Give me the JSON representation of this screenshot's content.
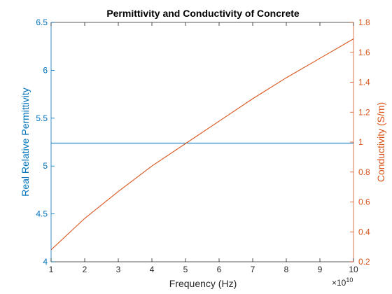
{
  "chart_data": {
    "type": "line",
    "title": "Permittivity and Conductivity of Concrete",
    "xlabel": "Frequency (Hz)",
    "x_exponent_label": "×10",
    "x_exponent_power": "10",
    "xlim": [
      10000000000.0,
      100000000000.0
    ],
    "x_ticks": [
      10000000000.0,
      20000000000.0,
      30000000000.0,
      40000000000.0,
      50000000000.0,
      60000000000.0,
      70000000000.0,
      80000000000.0,
      90000000000.0,
      100000000000.0
    ],
    "x_tick_labels": [
      "1",
      "2",
      "3",
      "4",
      "5",
      "6",
      "7",
      "8",
      "9",
      "10"
    ],
    "left_axis": {
      "label": "Real Relative Permittivity",
      "ylim": [
        4,
        6.5
      ],
      "ticks": [
        4,
        4.5,
        5,
        5.5,
        6,
        6.5
      ],
      "tick_labels": [
        "4",
        "4.5",
        "5",
        "5.5",
        "6",
        "6.5"
      ],
      "color": "#0072BD"
    },
    "right_axis": {
      "label": "Conductivity (S/m)",
      "ylim": [
        0.2,
        1.8
      ],
      "ticks": [
        0.2,
        0.4,
        0.6,
        0.8,
        1,
        1.2,
        1.4,
        1.6,
        1.8
      ],
      "tick_labels": [
        "0.2",
        "0.4",
        "0.6",
        "0.8",
        "1",
        "1.2",
        "1.4",
        "1.6",
        "1.8"
      ],
      "color": "#D95319"
    },
    "series": [
      {
        "axis": "left",
        "color": "#0072BD",
        "x": [
          10000000000.0,
          100000000000.0
        ],
        "y": [
          5.24,
          5.24
        ]
      },
      {
        "axis": "right",
        "color": "#D95319",
        "x": [
          10000000000.0,
          20000000000.0,
          30000000000.0,
          40000000000.0,
          50000000000.0,
          60000000000.0,
          70000000000.0,
          80000000000.0,
          90000000000.0,
          100000000000.0
        ],
        "y": [
          0.28,
          0.49,
          0.67,
          0.84,
          0.99,
          1.14,
          1.29,
          1.43,
          1.56,
          1.69
        ]
      }
    ],
    "grid": false,
    "legend": "none"
  }
}
